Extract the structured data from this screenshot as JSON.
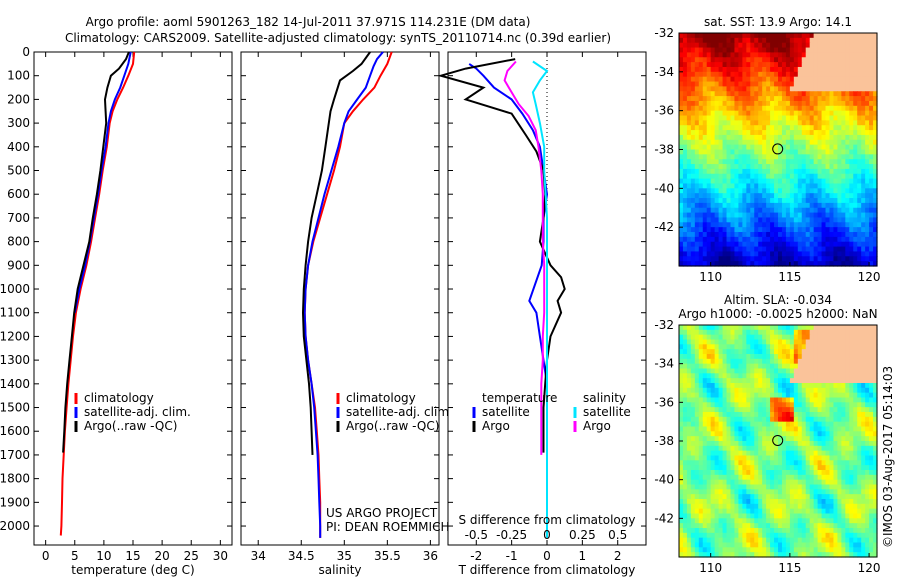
{
  "header": {
    "title_line1": "Argo profile: aoml 5901263_182 14-Jul-2011 37.971S 114.231E (DM data)",
    "title_line2": "Climatology: CARS2009. Satellite-adjusted climatology: synTS_20110714.nc (0.39d earlier)"
  },
  "credit": {
    "project": "US ARGO PROJECT",
    "pi": "PI: DEAN ROEMMICH",
    "imos": "©IMOS 03-Aug-2017 05:14:03"
  },
  "colors": {
    "climatology": "#ff0000",
    "satellite": "#0000ff",
    "argo": "#000000",
    "salinity_satellite": "#00e5ff",
    "salinity_argo": "#ff00ff",
    "land": "#fac39a"
  },
  "chart_data": [
    {
      "type": "line",
      "name": "temperature",
      "xlabel": "temperature (deg C)",
      "ylabel": "",
      "xlim": [
        -2,
        32
      ],
      "ylim": [
        2080,
        0
      ],
      "xticks": [
        0,
        5,
        10,
        15,
        20,
        25,
        30
      ],
      "yticks": [
        0,
        100,
        200,
        300,
        400,
        500,
        600,
        700,
        800,
        900,
        1000,
        1100,
        1200,
        1300,
        1400,
        1500,
        1600,
        1700,
        1800,
        1900,
        2000
      ],
      "legend": [
        "climatology",
        "satellite-adj. clim.",
        "Argo(..raw -QC)"
      ],
      "legend_position": "lower-right",
      "series": [
        {
          "name": "climatology",
          "color": "#ff0000",
          "points": [
            [
              15.2,
              0
            ],
            [
              15.0,
              50
            ],
            [
              14.2,
              100
            ],
            [
              13.3,
              150
            ],
            [
              12.3,
              200
            ],
            [
              11.5,
              250
            ],
            [
              11.0,
              300
            ],
            [
              10.5,
              400
            ],
            [
              9.8,
              500
            ],
            [
              9.2,
              600
            ],
            [
              8.5,
              700
            ],
            [
              7.8,
              800
            ],
            [
              7.0,
              900
            ],
            [
              6.0,
              1000
            ],
            [
              5.2,
              1100
            ],
            [
              4.7,
              1200
            ],
            [
              4.3,
              1300
            ],
            [
              3.9,
              1400
            ],
            [
              3.6,
              1500
            ],
            [
              3.3,
              1600
            ],
            [
              3.1,
              1700
            ],
            [
              2.9,
              1800
            ],
            [
              2.8,
              1900
            ],
            [
              2.7,
              2000
            ],
            [
              2.6,
              2040
            ]
          ]
        },
        {
          "name": "satellite-adj. clim.",
          "color": "#0000ff",
          "points": [
            [
              14.6,
              0
            ],
            [
              14.2,
              50
            ],
            [
              13.5,
              100
            ],
            [
              12.8,
              150
            ],
            [
              11.9,
              200
            ],
            [
              11.2,
              250
            ],
            [
              10.8,
              300
            ],
            [
              10.3,
              400
            ],
            [
              9.6,
              500
            ],
            [
              9.0,
              600
            ],
            [
              8.3,
              700
            ],
            [
              7.6,
              800
            ],
            [
              6.8,
              900
            ],
            [
              5.8,
              1000
            ],
            [
              5.0,
              1100
            ]
          ]
        },
        {
          "name": "Argo(..raw -QC)",
          "color": "#000000",
          "points": [
            [
              14.3,
              0
            ],
            [
              13.8,
              30
            ],
            [
              12.6,
              70
            ],
            [
              11.2,
              100
            ],
            [
              10.6,
              150
            ],
            [
              10.2,
              200
            ],
            [
              10.3,
              250
            ],
            [
              10.4,
              300
            ],
            [
              9.9,
              400
            ],
            [
              9.4,
              500
            ],
            [
              8.8,
              600
            ],
            [
              8.1,
              700
            ],
            [
              7.5,
              800
            ],
            [
              6.5,
              900
            ],
            [
              5.5,
              1000
            ],
            [
              4.9,
              1100
            ],
            [
              4.5,
              1200
            ],
            [
              4.1,
              1300
            ],
            [
              3.7,
              1400
            ],
            [
              3.4,
              1500
            ],
            [
              3.2,
              1600
            ],
            [
              3.0,
              1690
            ]
          ]
        }
      ]
    },
    {
      "type": "line",
      "name": "salinity",
      "xlabel": "salinity",
      "ylabel": "",
      "xlim": [
        33.8,
        36.1
      ],
      "ylim": [
        2080,
        0
      ],
      "xticks": [
        34,
        34.5,
        35,
        35.5,
        36
      ],
      "legend": [
        "climatology",
        "satellite-adj. clim.",
        "Argo(..raw -QC)"
      ],
      "legend_position": "lower-right",
      "series": [
        {
          "name": "climatology",
          "color": "#ff0000",
          "points": [
            [
              35.55,
              0
            ],
            [
              35.5,
              50
            ],
            [
              35.42,
              100
            ],
            [
              35.35,
              150
            ],
            [
              35.22,
              200
            ],
            [
              35.1,
              250
            ],
            [
              35.0,
              300
            ],
            [
              34.95,
              400
            ],
            [
              34.88,
              500
            ],
            [
              34.8,
              600
            ],
            [
              34.72,
              700
            ],
            [
              34.64,
              800
            ],
            [
              34.58,
              900
            ],
            [
              34.55,
              1000
            ],
            [
              34.54,
              1100
            ],
            [
              34.55,
              1200
            ],
            [
              34.58,
              1300
            ],
            [
              34.62,
              1400
            ],
            [
              34.66,
              1500
            ],
            [
              34.68,
              1600
            ],
            [
              34.7,
              1700
            ],
            [
              34.71,
              1800
            ],
            [
              34.72,
              1900
            ],
            [
              34.72,
              2000
            ],
            [
              34.72,
              2050
            ]
          ]
        },
        {
          "name": "satellite-adj. clim.",
          "color": "#0000ff",
          "points": [
            [
              35.45,
              0
            ],
            [
              35.38,
              30
            ],
            [
              35.34,
              60
            ],
            [
              35.3,
              100
            ],
            [
              35.25,
              150
            ],
            [
              35.15,
              200
            ],
            [
              35.05,
              250
            ],
            [
              35.0,
              300
            ],
            [
              34.93,
              400
            ],
            [
              34.85,
              500
            ],
            [
              34.77,
              600
            ],
            [
              34.7,
              700
            ],
            [
              34.63,
              800
            ],
            [
              34.58,
              900
            ],
            [
              34.55,
              1000
            ],
            [
              34.54,
              1100
            ],
            [
              34.55,
              1200
            ],
            [
              34.58,
              1300
            ],
            [
              34.62,
              1400
            ],
            [
              34.65,
              1500
            ],
            [
              34.67,
              1600
            ],
            [
              34.69,
              1700
            ],
            [
              34.7,
              1800
            ],
            [
              34.71,
              1900
            ],
            [
              34.72,
              2000
            ],
            [
              34.72,
              2050
            ]
          ]
        },
        {
          "name": "Argo(..raw -QC)",
          "color": "#000000",
          "points": [
            [
              35.3,
              0
            ],
            [
              35.2,
              50
            ],
            [
              35.1,
              80
            ],
            [
              34.95,
              120
            ],
            [
              34.88,
              200
            ],
            [
              34.84,
              250
            ],
            [
              34.82,
              300
            ],
            [
              34.78,
              400
            ],
            [
              34.74,
              500
            ],
            [
              34.68,
              600
            ],
            [
              34.62,
              700
            ],
            [
              34.58,
              800
            ],
            [
              34.55,
              900
            ],
            [
              34.53,
              1000
            ],
            [
              34.52,
              1100
            ],
            [
              34.53,
              1200
            ],
            [
              34.56,
              1300
            ],
            [
              34.59,
              1400
            ],
            [
              34.61,
              1500
            ],
            [
              34.62,
              1600
            ],
            [
              34.63,
              1700
            ]
          ]
        }
      ]
    },
    {
      "type": "line",
      "name": "difference",
      "xlabel": "T difference from climatology",
      "x2label": "S difference from climatology",
      "ylabel": "",
      "xlim": [
        -2.8,
        2.8
      ],
      "ylim": [
        2080,
        0
      ],
      "xticks": [
        -2,
        -1,
        0,
        1,
        2
      ],
      "x2ticks": [
        -0.5,
        -0.25,
        0,
        0.25,
        0.5
      ],
      "legend_headers": [
        "temperature",
        "salinity"
      ],
      "legend": [
        "satellite",
        "Argo",
        "satellite",
        "Argo"
      ],
      "legend_position": "lower-center",
      "series": [
        {
          "name": "temperature satellite",
          "color": "#0000ff",
          "points": [
            [
              -2.2,
              50
            ],
            [
              -2.0,
              70
            ],
            [
              -1.8,
              100
            ],
            [
              -1.5,
              150
            ],
            [
              -1.0,
              200
            ],
            [
              -0.7,
              260
            ],
            [
              -0.4,
              330
            ],
            [
              -0.2,
              400
            ],
            [
              -0.1,
              500
            ],
            [
              0.0,
              600
            ],
            [
              -0.1,
              700
            ],
            [
              -0.1,
              800
            ],
            [
              -0.15,
              900
            ],
            [
              -0.5,
              1050
            ],
            [
              -0.3,
              1100
            ],
            [
              -0.2,
              1200
            ],
            [
              -0.1,
              1300
            ],
            [
              0.0,
              1400
            ]
          ]
        },
        {
          "name": "temperature Argo",
          "color": "#000000",
          "points": [
            [
              -0.9,
              30
            ],
            [
              -2.3,
              70
            ],
            [
              -3.0,
              100
            ],
            [
              -1.8,
              150
            ],
            [
              -2.3,
              200
            ],
            [
              -1.0,
              260
            ],
            [
              -0.6,
              350
            ],
            [
              -0.3,
              420
            ],
            [
              -0.1,
              500
            ],
            [
              -0.05,
              600
            ],
            [
              -0.1,
              700
            ],
            [
              -0.2,
              800
            ],
            [
              0.1,
              900
            ],
            [
              0.4,
              950
            ],
            [
              0.5,
              1000
            ],
            [
              0.3,
              1050
            ],
            [
              0.4,
              1100
            ],
            [
              0.1,
              1200
            ],
            [
              0.0,
              1300
            ],
            [
              -0.05,
              1400
            ],
            [
              -0.1,
              1500
            ],
            [
              -0.1,
              1600
            ],
            [
              -0.1,
              1690
            ]
          ]
        },
        {
          "name": "salinity satellite",
          "color": "#00e5ff",
          "points": [
            [
              -0.1,
              40
            ],
            [
              0.0,
              80
            ],
            [
              -0.05,
              120
            ],
            [
              -0.1,
              170
            ],
            [
              -0.08,
              220
            ],
            [
              -0.05,
              300
            ],
            [
              -0.02,
              400
            ],
            [
              -0.02,
              500
            ],
            [
              -0.01,
              600
            ],
            [
              0.0,
              700
            ],
            [
              0.0,
              800
            ],
            [
              0.0,
              900
            ],
            [
              0.0,
              1000
            ],
            [
              0.0,
              1200
            ],
            [
              0.0,
              1500
            ],
            [
              0.0,
              1700
            ],
            [
              0.0,
              2000
            ],
            [
              0.0,
              2050
            ]
          ]
        },
        {
          "name": "salinity Argo",
          "color": "#ff00ff",
          "points": [
            [
              -0.22,
              40
            ],
            [
              -0.28,
              80
            ],
            [
              -0.3,
              120
            ],
            [
              -0.25,
              170
            ],
            [
              -0.2,
              220
            ],
            [
              -0.13,
              270
            ],
            [
              -0.08,
              330
            ],
            [
              -0.06,
              400
            ],
            [
              -0.04,
              500
            ],
            [
              -0.03,
              600
            ],
            [
              -0.03,
              700
            ],
            [
              -0.03,
              800
            ],
            [
              -0.02,
              900
            ],
            [
              -0.02,
              1000
            ],
            [
              -0.02,
              1100
            ],
            [
              -0.03,
              1200
            ],
            [
              -0.03,
              1300
            ],
            [
              -0.04,
              1400
            ],
            [
              -0.04,
              1500
            ],
            [
              -0.04,
              1600
            ],
            [
              -0.04,
              1700
            ]
          ]
        }
      ]
    },
    {
      "type": "heatmap",
      "name": "sst_map",
      "title": "sat. SST: 13.9  Argo: 14.1",
      "xlim": [
        108,
        120.5
      ],
      "ylim": [
        -44,
        -32
      ],
      "xticks": [
        110,
        115,
        120
      ],
      "yticks": [
        -32,
        -34,
        -36,
        -38,
        -40,
        -42
      ],
      "colormap": "jet",
      "float_position": [
        114.231,
        -37.971
      ],
      "land": "southwest Australia"
    },
    {
      "type": "heatmap",
      "name": "sla_map",
      "title": "Altim. SLA: -0.034",
      "subtitle": "Argo h1000: -0.0025 h2000: NaN",
      "xlim": [
        108,
        120.5
      ],
      "ylim": [
        -44,
        -32
      ],
      "xticks": [
        110,
        115,
        120
      ],
      "yticks": [
        -32,
        -34,
        -36,
        -38,
        -40,
        -42
      ],
      "colormap": "jet",
      "float_position": [
        114.231,
        -37.971
      ],
      "land": "southwest Australia"
    }
  ]
}
